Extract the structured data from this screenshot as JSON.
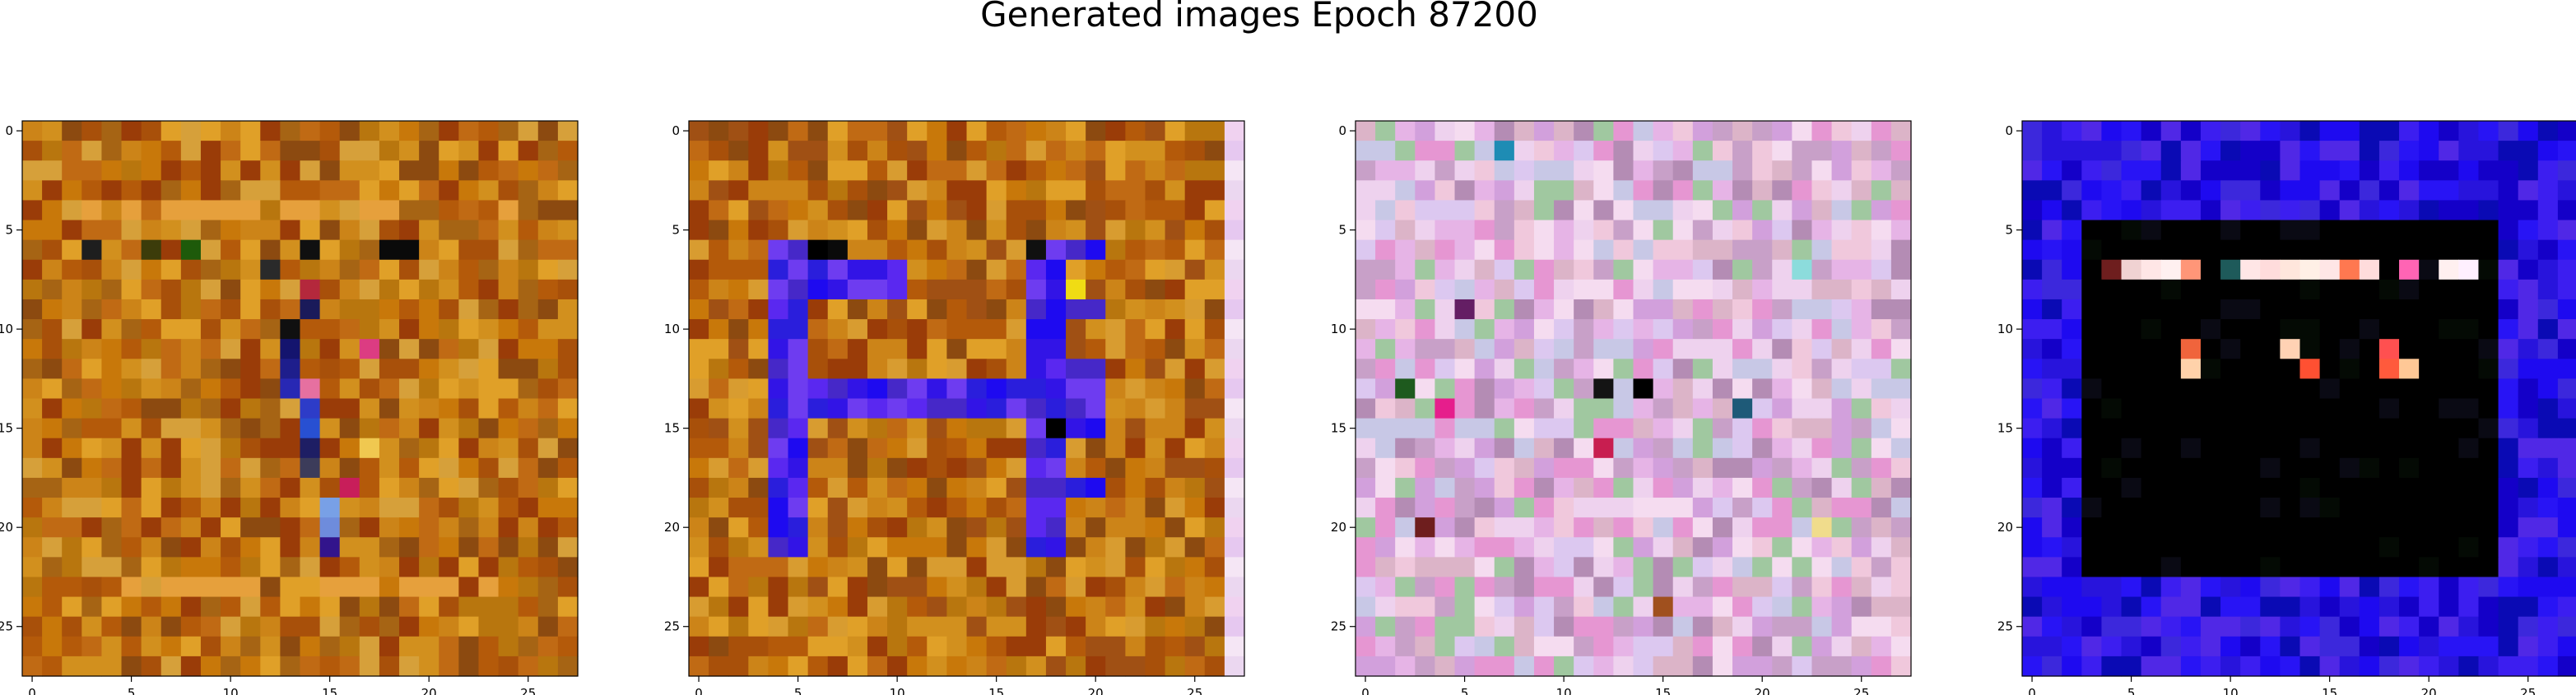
{
  "title": "Generated images Epoch 87200",
  "chart_data": {
    "type": "heatmap",
    "title": "Generated images Epoch 87200",
    "grid": false,
    "image_size": 28,
    "xticks": [
      0,
      5,
      10,
      15,
      20,
      25
    ],
    "yticks": [
      0,
      5,
      10,
      15,
      20,
      25
    ],
    "xlim": [
      -0.5,
      27.5
    ],
    "ylim": [
      27.5,
      -0.5
    ],
    "panels": [
      {
        "description": "orange/brown noise with dark vertical stroke",
        "palette": [
          "#b45a0a",
          "#c8780a",
          "#a8500a",
          "#d2901e",
          "#9a3c08",
          "#c06a14",
          "#e0a028",
          "#8c4a10",
          "#b8760e",
          "#cc8418",
          "#a66414",
          "#d6a03a"
        ],
        "accents": [
          {
            "r": 6,
            "c": 3,
            "color": "#1e1e1e"
          },
          {
            "r": 6,
            "c": 6,
            "color": "#3c3c0a"
          },
          {
            "r": 6,
            "c": 8,
            "color": "#1e5a0a"
          },
          {
            "r": 6,
            "c": 14,
            "color": "#101010"
          },
          {
            "r": 6,
            "c": 18,
            "color": "#0a0a0a"
          },
          {
            "r": 6,
            "c": 19,
            "color": "#0a0a0a"
          },
          {
            "r": 7,
            "c": 12,
            "color": "#2a2a2a"
          },
          {
            "r": 8,
            "c": 14,
            "color": "#b4283c"
          },
          {
            "r": 9,
            "c": 14,
            "color": "#1a1a5a"
          },
          {
            "r": 10,
            "c": 13,
            "color": "#101010"
          },
          {
            "r": 11,
            "c": 13,
            "color": "#14146e"
          },
          {
            "r": 12,
            "c": 13,
            "color": "#1e1e8c"
          },
          {
            "r": 13,
            "c": 13,
            "color": "#2828b4"
          },
          {
            "r": 13,
            "c": 14,
            "color": "#e670a0"
          },
          {
            "r": 14,
            "c": 14,
            "color": "#2d3cc8"
          },
          {
            "r": 15,
            "c": 14,
            "color": "#2850d2"
          },
          {
            "r": 16,
            "c": 14,
            "color": "#1e1e64"
          },
          {
            "r": 17,
            "c": 14,
            "color": "#3c3c5a"
          },
          {
            "r": 18,
            "c": 16,
            "color": "#c81e5a"
          },
          {
            "r": 19,
            "c": 15,
            "color": "#78a0e6"
          },
          {
            "r": 20,
            "c": 15,
            "color": "#6e8cdc"
          },
          {
            "r": 11,
            "c": 17,
            "color": "#dc3c82"
          },
          {
            "r": 16,
            "c": 17,
            "color": "#f0c850"
          },
          {
            "r": 21,
            "c": 15,
            "color": "#32148c"
          }
        ]
      },
      {
        "description": "orange noise with blue/violet H-like structure",
        "palette": [
          "#b45a0a",
          "#c8780a",
          "#a8500a",
          "#d2901e",
          "#9a3c08",
          "#c06a14",
          "#e0a028",
          "#8c4a10",
          "#b8760e",
          "#cc8418",
          "#a05014",
          "#d89c30"
        ],
        "right_column": [
          "#f0d2f0",
          "#e6c8f0",
          "#f5e6f5",
          "#ebd7f0"
        ],
        "blue_rows": [
          7,
          8
        ],
        "blue_cols": [
          4,
          5,
          17,
          18,
          19,
          20
        ],
        "blue_band_rows": [
          13,
          14
        ],
        "blue_colors": [
          "#1e0af0",
          "#3214e6",
          "#5a28f0",
          "#2a1edc",
          "#4628c8",
          "#6e3cf0"
        ]
      },
      {
        "description": "pastel pink/lavender noise",
        "palette": [
          "#e6b4e6",
          "#dcc8f0",
          "#f0c8dc",
          "#c8a0c8",
          "#eed2ee",
          "#d2a0dc",
          "#b48cb4",
          "#f5dcf0",
          "#c8c8e6",
          "#e696d2",
          "#a0c8a0",
          "#dcb4c8"
        ],
        "accents": [
          {
            "r": 13,
            "c": 14,
            "color": "#000000"
          },
          {
            "r": 13,
            "c": 2,
            "color": "#1e5a1e"
          },
          {
            "r": 14,
            "c": 19,
            "color": "#1e5a78"
          },
          {
            "r": 13,
            "c": 12,
            "color": "#141414"
          },
          {
            "r": 16,
            "c": 12,
            "color": "#c81e50"
          },
          {
            "r": 9,
            "c": 5,
            "color": "#641e64"
          },
          {
            "r": 14,
            "c": 4,
            "color": "#e61e8c"
          },
          {
            "r": 7,
            "c": 22,
            "color": "#8cdcdc"
          },
          {
            "r": 20,
            "c": 3,
            "color": "#6e1e1e"
          },
          {
            "r": 24,
            "c": 15,
            "color": "#a0501e"
          },
          {
            "r": 1,
            "c": 7,
            "color": "#1e8cb4"
          },
          {
            "r": 20,
            "c": 23,
            "color": "#f0dc8c"
          }
        ]
      },
      {
        "description": "blue frame with black interior and small red marks",
        "frame_palette": [
          "#1e0af0",
          "#2814dc",
          "#3c1ef0",
          "#1400c8",
          "#5028e6",
          "#2814f5",
          "#0a0ab4",
          "#3c28dc"
        ],
        "black_box": {
          "row_start": 5,
          "row_end": 22,
          "col_start": 3,
          "col_end": 23
        },
        "top_marks": [
          {
            "r": 7,
            "c": 4,
            "color": "#6e1e1e"
          },
          {
            "r": 7,
            "c": 5,
            "color": "#f0d2d2"
          },
          {
            "r": 7,
            "c": 6,
            "color": "#ffe6e6"
          },
          {
            "r": 7,
            "c": 7,
            "color": "#fff0f0"
          },
          {
            "r": 7,
            "c": 8,
            "color": "#ff9678"
          },
          {
            "r": 7,
            "c": 11,
            "color": "#ffe6e6"
          },
          {
            "r": 7,
            "c": 12,
            "color": "#ffdcdc"
          },
          {
            "r": 7,
            "c": 13,
            "color": "#ffe6dc"
          },
          {
            "r": 7,
            "c": 14,
            "color": "#fff0e6"
          },
          {
            "r": 7,
            "c": 15,
            "color": "#ffe6e6"
          },
          {
            "r": 7,
            "c": 16,
            "color": "#ff7850"
          },
          {
            "r": 7,
            "c": 17,
            "color": "#ffdcdc"
          },
          {
            "r": 7,
            "c": 19,
            "color": "#ff64b4"
          },
          {
            "r": 7,
            "c": 21,
            "color": "#fff0f0"
          },
          {
            "r": 7,
            "c": 22,
            "color": "#fff0ff"
          },
          {
            "r": 11,
            "c": 8,
            "color": "#f0643c"
          },
          {
            "r": 12,
            "c": 8,
            "color": "#ffd2aa"
          },
          {
            "r": 11,
            "c": 13,
            "color": "#ffd2b4"
          },
          {
            "r": 12,
            "c": 14,
            "color": "#ff5032"
          },
          {
            "r": 11,
            "c": 18,
            "color": "#ff5050"
          },
          {
            "r": 12,
            "c": 18,
            "color": "#ff5a3c"
          },
          {
            "r": 12,
            "c": 19,
            "color": "#ffc896"
          },
          {
            "r": 7,
            "c": 10,
            "color": "#1e5a5a"
          }
        ]
      }
    ]
  }
}
